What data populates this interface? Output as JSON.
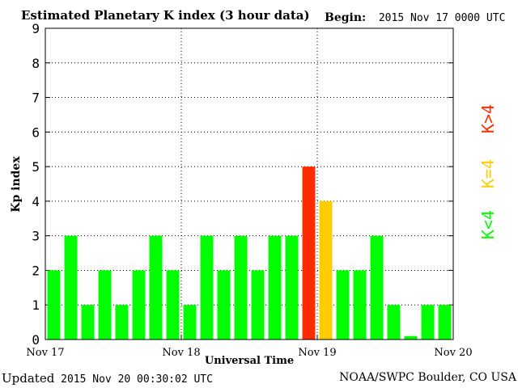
{
  "header": {
    "title": "Estimated Planetary K index (3 hour data)",
    "begin_label": "Begin:",
    "begin_value": "2015 Nov 17 0000 UTC"
  },
  "footer": {
    "updated_label": "Updated",
    "updated_value": "2015 Nov 20 00:30:02 UTC",
    "credit": "NOAA/SWPC Boulder, CO USA"
  },
  "legend": {
    "low": "K<4",
    "mid": "K=4",
    "high": "K>4"
  },
  "colors": {
    "low": "#00ff00",
    "mid": "#ffcc00",
    "high": "#ff2a00"
  },
  "chart_data": {
    "type": "bar",
    "title": "Estimated Planetary K index (3 hour data)",
    "xlabel": "Universal Time",
    "ylabel": "Kp index",
    "ylim": [
      0,
      9
    ],
    "yticks": [
      "0",
      "1",
      "2",
      "3",
      "4",
      "5",
      "6",
      "7",
      "8",
      "9"
    ],
    "xticks": [
      "Nov 17",
      "Nov 18",
      "Nov 19",
      "Nov 20"
    ],
    "grid": true,
    "values": [
      2,
      3,
      1,
      2,
      1,
      2,
      3,
      2,
      1,
      3,
      2,
      3,
      2,
      3,
      3,
      5,
      4,
      2,
      2,
      3,
      1,
      0.1,
      1,
      1
    ]
  }
}
